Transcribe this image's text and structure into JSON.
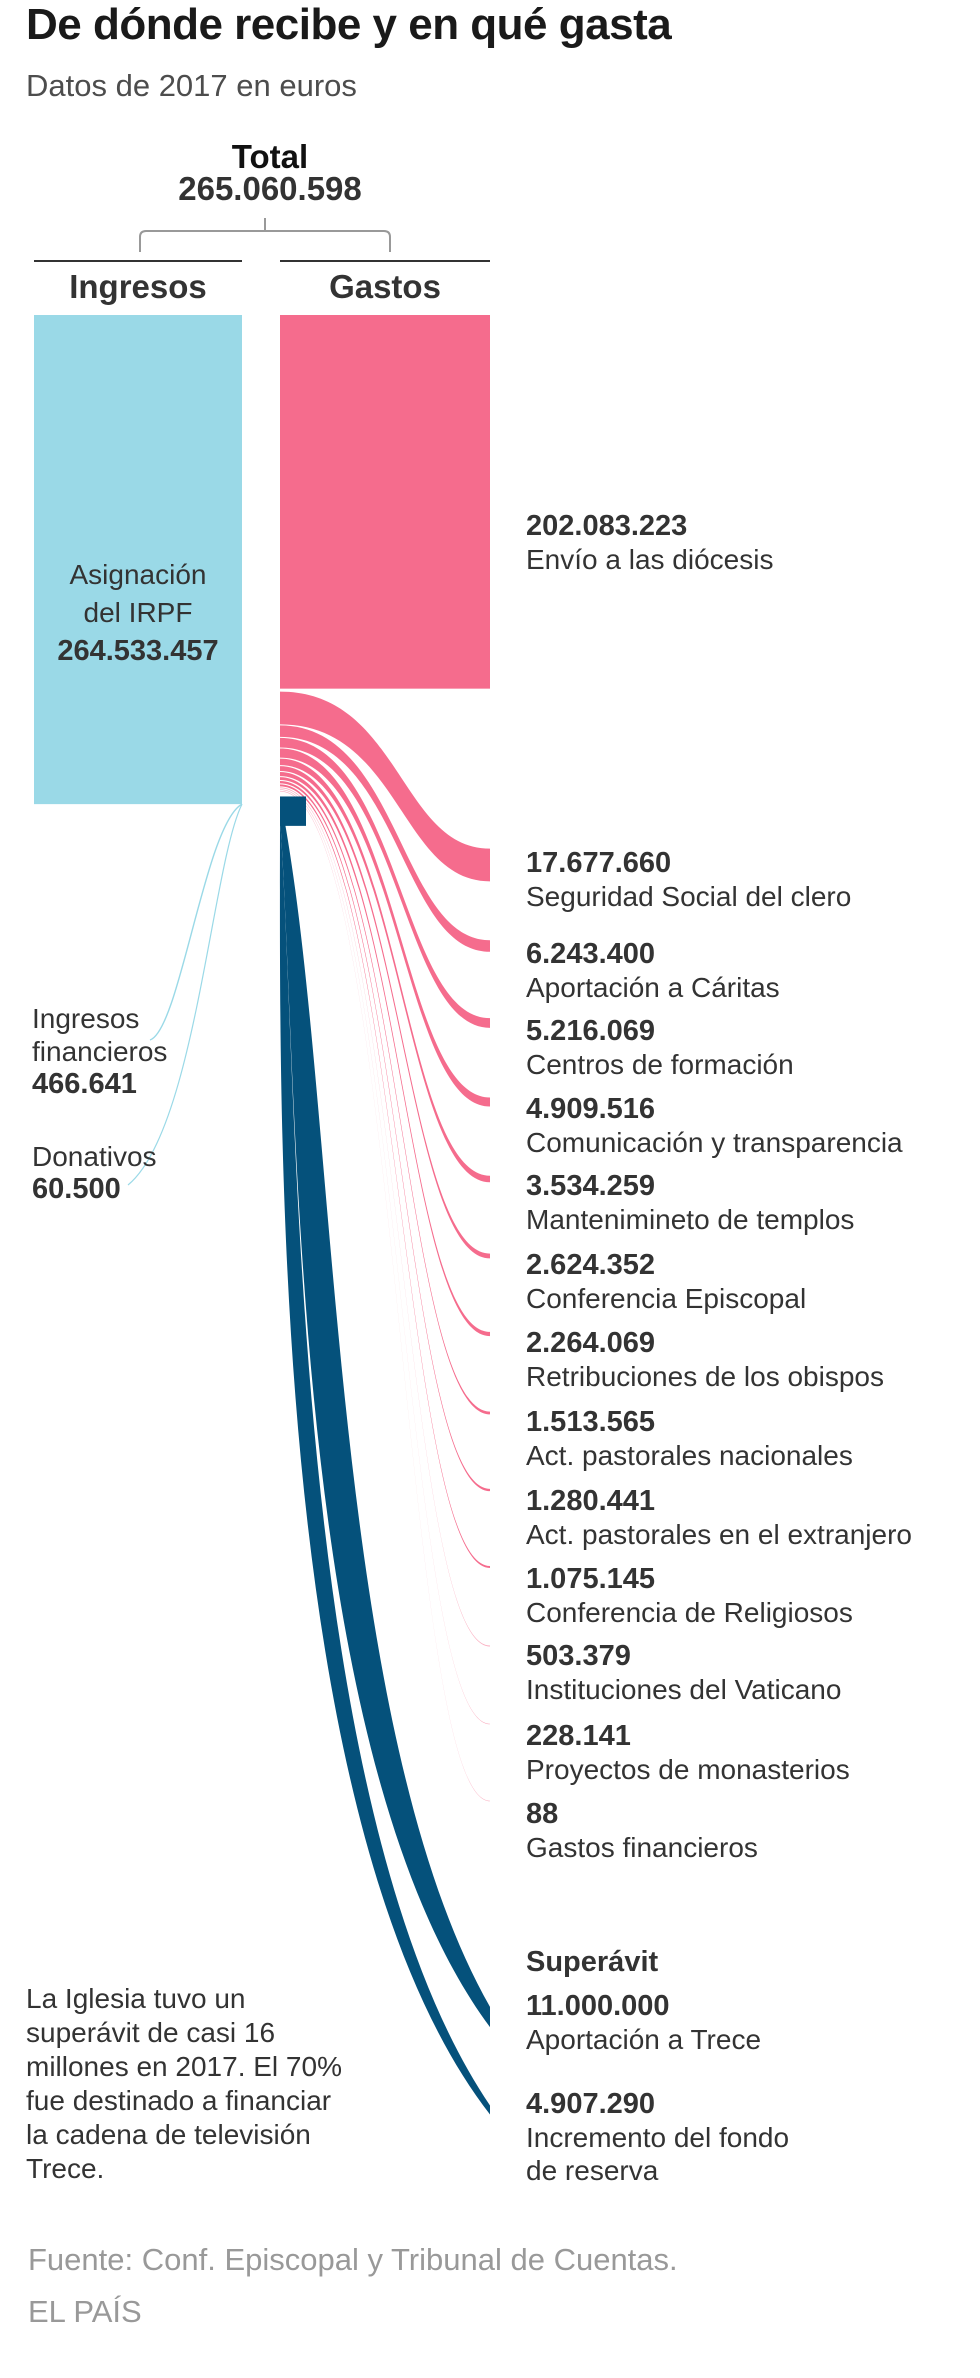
{
  "title": "De dónde recibe y en qué gasta",
  "subtitle": "Datos de 2017 en euros",
  "total": {
    "label": "Total",
    "value": "265.060.598"
  },
  "columns": {
    "income": "Ingresos",
    "expenses": "Gastos"
  },
  "colors": {
    "income": "#9ad9e7",
    "expense": "#f56c8d",
    "surplus": "#05517b"
  },
  "chart_data": {
    "type": "sankey",
    "total": 265060598,
    "income": [
      {
        "name": "Asignación del IRPF",
        "name_lines": [
          "Asignación",
          "del IRPF"
        ],
        "value": 264533457,
        "value_label": "264.533.457"
      },
      {
        "name": "Ingresos financieros",
        "name_lines": [
          "Ingresos",
          "financieros"
        ],
        "value": 466641,
        "value_label": "466.641"
      },
      {
        "name": "Donativos",
        "name_lines": [
          "Donativos"
        ],
        "value": 60500,
        "value_label": "60.500"
      }
    ],
    "expenses": [
      {
        "name": "Envío a las diócesis",
        "value": 202083223,
        "value_label": "202.083.223"
      },
      {
        "name": "Seguridad Social del clero",
        "value": 17677660,
        "value_label": "17.677.660"
      },
      {
        "name": "Aportación a Cáritas",
        "value": 6243400,
        "value_label": "6.243.400"
      },
      {
        "name": "Centros de formación",
        "value": 5216069,
        "value_label": "5.216.069"
      },
      {
        "name": "Comunicación y transparencia",
        "value": 4909516,
        "value_label": "4.909.516"
      },
      {
        "name": "Mantenimineto de templos",
        "value": 3534259,
        "value_label": "3.534.259"
      },
      {
        "name": "Conferencia Episcopal",
        "value": 2624352,
        "value_label": "2.624.352"
      },
      {
        "name": "Retribuciones de los obispos",
        "value": 2264069,
        "value_label": "2.264.069"
      },
      {
        "name": "Act. pastorales nacionales",
        "value": 1513565,
        "value_label": "1.513.565"
      },
      {
        "name": "Act. pastorales en el extranjero",
        "value": 1280441,
        "value_label": "1.280.441"
      },
      {
        "name": "Conferencia de Religiosos",
        "value": 1075145,
        "value_label": "1.075.145"
      },
      {
        "name": "Instituciones del Vaticano",
        "value": 503379,
        "value_label": "503.379"
      },
      {
        "name": "Proyectos de monasterios",
        "value": 228141,
        "value_label": "228.141"
      },
      {
        "name": "Gastos financieros",
        "value": 88,
        "value_label": "88"
      }
    ],
    "surplus": {
      "label": "Superávit",
      "items": [
        {
          "name": "Aportación a Trece",
          "name_lines": [
            "Aportación a Trece"
          ],
          "value": 11000000,
          "value_label": "11.000.000"
        },
        {
          "name": "Incremento del fondo de reserva",
          "name_lines": [
            "Incremento del fondo",
            "de reserva"
          ],
          "value": 4907290,
          "value_label": "4.907.290"
        }
      ]
    }
  },
  "note": "La Iglesia tuvo un superávit de casi 16 millones en 2017. El 70% fue destinado a financiar la cadena de televisión Trece.",
  "source": "Fuente: Conf. Episcopal y Tribunal de Cuentas.",
  "brand": "EL PAÍS"
}
